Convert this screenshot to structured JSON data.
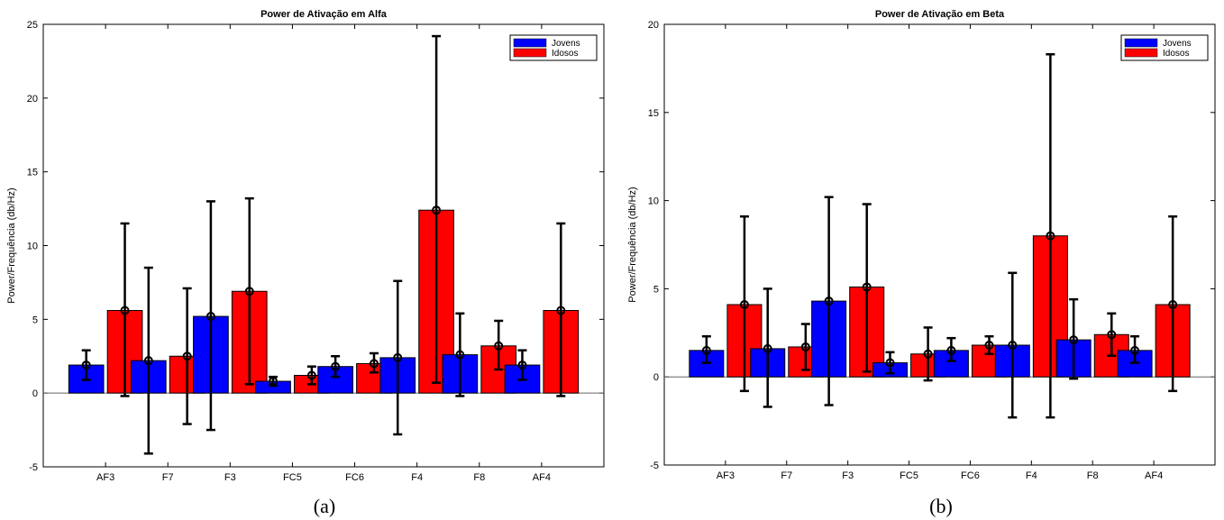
{
  "chart_data": [
    {
      "type": "bar",
      "caption": "(a)",
      "title": "Power de Ativação em Alfa",
      "ylabel": "Power/Frequência (db/Hz)",
      "xlabel": "",
      "categories": [
        "AF3",
        "F7",
        "F3",
        "FC5",
        "FC6",
        "F4",
        "F8",
        "AF4"
      ],
      "ylim": [
        -5,
        25
      ],
      "yticks": [
        -5,
        0,
        5,
        10,
        15,
        20,
        25
      ],
      "legend_position": "top-right",
      "series": [
        {
          "name": "Jovens",
          "color": "#0000ff",
          "values": [
            1.9,
            2.2,
            5.2,
            0.8,
            1.8,
            2.4,
            2.6,
            1.9
          ],
          "err_low": [
            0.9,
            -4.1,
            -2.5,
            0.5,
            1.1,
            -2.8,
            -0.2,
            0.9
          ],
          "err_high": [
            2.9,
            8.5,
            13.0,
            1.1,
            2.5,
            7.6,
            5.4,
            2.9
          ]
        },
        {
          "name": "Idosos",
          "color": "#ff0000",
          "values": [
            5.6,
            2.5,
            6.9,
            1.2,
            2.0,
            12.4,
            3.2,
            5.6
          ],
          "err_low": [
            -0.2,
            -2.1,
            0.6,
            0.6,
            1.4,
            0.7,
            1.6,
            -0.2
          ],
          "err_high": [
            11.5,
            7.1,
            13.2,
            1.8,
            2.7,
            24.2,
            4.9,
            11.5
          ]
        }
      ]
    },
    {
      "type": "bar",
      "caption": "(b)",
      "title": "Power de Ativação em Beta",
      "ylabel": "Power/Frequência (db/Hz)",
      "xlabel": "",
      "categories": [
        "AF3",
        "F7",
        "F3",
        "FC5",
        "FC6",
        "F4",
        "F8",
        "AF4"
      ],
      "ylim": [
        -5,
        20
      ],
      "yticks": [
        -5,
        0,
        5,
        10,
        15,
        20
      ],
      "legend_position": "top-right",
      "series": [
        {
          "name": "Jovens",
          "color": "#0000ff",
          "values": [
            1.5,
            1.6,
            4.3,
            0.8,
            1.5,
            1.8,
            2.1,
            1.5
          ],
          "err_low": [
            0.8,
            -1.7,
            -1.6,
            0.2,
            0.9,
            -2.3,
            -0.1,
            0.8
          ],
          "err_high": [
            2.3,
            5.0,
            10.2,
            1.4,
            2.2,
            5.9,
            4.4,
            2.3
          ]
        },
        {
          "name": "Idosos",
          "color": "#ff0000",
          "values": [
            4.1,
            1.7,
            5.1,
            1.3,
            1.8,
            8.0,
            2.4,
            4.1
          ],
          "err_low": [
            -0.8,
            0.4,
            0.3,
            -0.2,
            1.3,
            -2.3,
            1.2,
            -0.8
          ],
          "err_high": [
            9.1,
            3.0,
            9.8,
            2.8,
            2.3,
            18.3,
            3.6,
            9.1
          ]
        }
      ]
    }
  ]
}
